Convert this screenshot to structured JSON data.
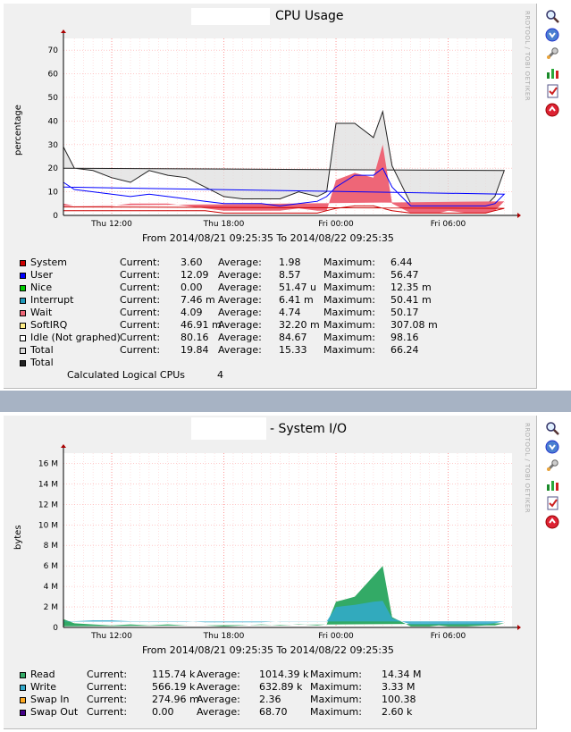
{
  "cpu": {
    "title": "CPU Usage",
    "ylabel": "percentage",
    "watermark": "RRDTOOL / TOBI OETIKER",
    "from_to": "From 2014/08/21 09:25:35 To 2014/08/22 09:25:35",
    "x_ticks": [
      "Thu 12:00",
      "Thu 18:00",
      "Fri 00:00",
      "Fri 06:00"
    ],
    "y_ticks": [
      "0",
      "10",
      "20",
      "30",
      "40",
      "50",
      "60",
      "70"
    ],
    "colors": {
      "system": "#cc0000",
      "user": "#0000ff",
      "nice": "#00cc00",
      "interrupt": "#2299bb",
      "wait": "#ee6677",
      "softirq": "#ffee88",
      "idle": "#ffffff",
      "total": "#dddddd",
      "total_line": "#222222",
      "grid": "#ff9999"
    },
    "legend": [
      {
        "color": "#cc0000",
        "name": "System",
        "cur_label": "Current:",
        "cur": "3.60",
        "avg_label": "Average:",
        "avg": "1.98",
        "max_label": "Maximum:",
        "max": "6.44"
      },
      {
        "color": "#0000ff",
        "name": "User",
        "cur_label": "Current:",
        "cur": "12.09",
        "avg_label": "Average:",
        "avg": "8.57",
        "max_label": "Maximum:",
        "max": "56.47"
      },
      {
        "color": "#00cc00",
        "name": "Nice",
        "cur_label": "Current:",
        "cur": "0.00",
        "avg_label": "Average:",
        "avg": "51.47 u",
        "max_label": "Maximum:",
        "max": "12.35 m"
      },
      {
        "color": "#2299bb",
        "name": "Interrupt",
        "cur_label": "Current:",
        "cur": "7.46 m",
        "avg_label": "Average:",
        "avg": "6.41 m",
        "max_label": "Maximum:",
        "max": "50.41 m"
      },
      {
        "color": "#ee6677",
        "name": "Wait",
        "cur_label": "Current:",
        "cur": "4.09",
        "avg_label": "Average:",
        "avg": "4.74",
        "max_label": "Maximum:",
        "max": "50.17"
      },
      {
        "color": "#ffee88",
        "name": "SoftIRQ",
        "cur_label": "Current:",
        "cur": "46.91 m",
        "avg_label": "Average:",
        "avg": "32.20 m",
        "max_label": "Maximum:",
        "max": "307.08 m"
      },
      {
        "color": "#ffffff",
        "name": "Idle (Not graphed)",
        "cur_label": "Current:",
        "cur": "80.16",
        "avg_label": "Average:",
        "avg": "84.67",
        "max_label": "Maximum:",
        "max": "98.16"
      },
      {
        "color": "#dddddd",
        "name": "Total",
        "cur_label": "Current:",
        "cur": "19.84",
        "avg_label": "Average:",
        "avg": "15.33",
        "max_label": "Maximum:",
        "max": "66.24"
      },
      {
        "color": "#222222",
        "name": "Total",
        "cur_label": "",
        "cur": "",
        "avg_label": "",
        "avg": "",
        "max_label": "",
        "max": ""
      }
    ],
    "cpus_label": "Calculated Logical CPUs",
    "cpus_value": "4"
  },
  "io": {
    "title": "- System I/O",
    "ylabel": "bytes",
    "watermark": "RRDTOOL / TOBI OETIKER",
    "from_to": "From 2014/08/21 09:25:35 To 2014/08/22 09:25:35",
    "x_ticks": [
      "Thu 12:00",
      "Thu 18:00",
      "Fri 00:00",
      "Fri 06:00"
    ],
    "y_ticks": [
      "0",
      "2 M",
      "4 M",
      "6 M",
      "8 M",
      "10 M",
      "12 M",
      "14 M",
      "16 M"
    ],
    "colors": {
      "read": "#33aa66",
      "write": "#33aacc",
      "swapin": "#ffaa22",
      "swapout": "#440088",
      "grid": "#ff9999"
    },
    "legend": [
      {
        "color": "#33aa66",
        "name": "Read",
        "cur_label": "Current:",
        "cur": "115.74 k",
        "avg_label": "Average:",
        "avg": "1014.39 k",
        "max_label": "Maximum:",
        "max": "14.34 M"
      },
      {
        "color": "#33aacc",
        "name": "Write",
        "cur_label": "Current:",
        "cur": "566.19 k",
        "avg_label": "Average:",
        "avg": "632.89 k",
        "max_label": "Maximum:",
        "max": "3.33 M"
      },
      {
        "color": "#ffaa22",
        "name": "Swap In",
        "cur_label": "Current:",
        "cur": "274.96 m",
        "avg_label": "Average:",
        "avg": "2.36",
        "max_label": "Maximum:",
        "max": "100.38"
      },
      {
        "color": "#440088",
        "name": "Swap Out",
        "cur_label": "Current:",
        "cur": "0.00",
        "avg_label": "Average:",
        "avg": "68.70",
        "max_label": "Maximum:",
        "max": "2.60 k"
      }
    ]
  },
  "icons": [
    "zoom-icon",
    "download-icon",
    "properties-icon",
    "graph-type-icon",
    "report-icon",
    "remove-icon"
  ],
  "chart_data": [
    {
      "type": "area",
      "title": "CPU Usage",
      "ylabel": "percentage",
      "xlabel": "",
      "ylim": [
        0,
        75
      ],
      "x": [
        "09:25",
        "10:00",
        "11:00",
        "12:00",
        "13:00",
        "14:00",
        "15:00",
        "16:00",
        "17:00",
        "18:00",
        "19:00",
        "20:00",
        "21:00",
        "22:00",
        "23:00",
        "23:30",
        "00:00",
        "01:00",
        "02:00",
        "02:30",
        "03:00",
        "04:00",
        "05:00",
        "05:30",
        "06:00",
        "07:00",
        "08:00",
        "08:30",
        "09:00",
        "09:25"
      ],
      "x_ticks": [
        "Thu 12:00",
        "Thu 18:00",
        "Fri 00:00",
        "Fri 06:00"
      ],
      "series": [
        {
          "name": "System",
          "values": [
            2,
            2,
            2,
            2,
            2,
            2,
            2,
            2,
            2,
            1,
            1,
            1,
            1,
            1,
            1,
            2,
            3,
            4,
            4,
            3,
            2,
            1,
            1,
            1,
            1,
            1,
            1,
            2,
            3,
            3.6
          ]
        },
        {
          "name": "User",
          "values": [
            14,
            11,
            10,
            9,
            8,
            9,
            8,
            7,
            6,
            5,
            5,
            5,
            4,
            5,
            6,
            8,
            12,
            17,
            17,
            20,
            12,
            4,
            4,
            4,
            4,
            4,
            4,
            5,
            9,
            12
          ]
        },
        {
          "name": "Wait",
          "values": [
            5,
            4,
            4,
            4,
            5,
            5,
            5,
            4,
            3,
            2,
            2,
            2,
            2,
            3,
            2,
            2,
            15,
            18,
            16,
            30,
            5,
            1,
            1,
            1,
            2,
            1,
            1,
            2,
            6,
            4
          ]
        },
        {
          "name": "Total",
          "values": [
            29,
            20,
            19,
            16,
            14,
            19,
            17,
            16,
            12,
            8,
            7,
            7,
            7,
            10,
            8,
            10,
            39,
            39,
            33,
            44,
            21,
            5,
            4,
            4,
            5,
            5,
            4,
            8,
            19,
            20
          ]
        }
      ]
    },
    {
      "type": "area",
      "title": "- System I/O",
      "ylabel": "bytes",
      "xlabel": "",
      "ylim": [
        0,
        17000000
      ],
      "x": [
        "09:25",
        "10:00",
        "11:00",
        "12:00",
        "13:00",
        "14:00",
        "15:00",
        "16:00",
        "17:00",
        "18:00",
        "19:00",
        "20:00",
        "21:00",
        "22:00",
        "23:00",
        "23:30",
        "00:00",
        "01:00",
        "02:00",
        "02:30",
        "03:00",
        "04:00",
        "05:00",
        "05:30",
        "06:00",
        "07:00",
        "08:00",
        "08:30",
        "09:00",
        "09:25"
      ],
      "x_ticks": [
        "Thu 12:00",
        "Thu 18:00",
        "Fri 00:00",
        "Fri 06:00"
      ],
      "series": [
        {
          "name": "Read",
          "values": [
            800000,
            400000,
            300000,
            200000,
            300000,
            200000,
            300000,
            200000,
            200000,
            100000,
            200000,
            300000,
            200000,
            300000,
            200000,
            300000,
            2500000,
            3000000,
            5000000,
            6000000,
            1000000,
            100000,
            100000,
            200000,
            100000,
            100000,
            200000,
            200000,
            400000,
            115740
          ]
        },
        {
          "name": "Write",
          "values": [
            600000,
            600000,
            700000,
            700000,
            600000,
            600000,
            600000,
            600000,
            500000,
            500000,
            500000,
            500000,
            600000,
            600000,
            600000,
            600000,
            2000000,
            2200000,
            2500000,
            2600000,
            900000,
            300000,
            300000,
            300000,
            300000,
            300000,
            300000,
            400000,
            600000,
            566190
          ]
        }
      ]
    }
  ]
}
